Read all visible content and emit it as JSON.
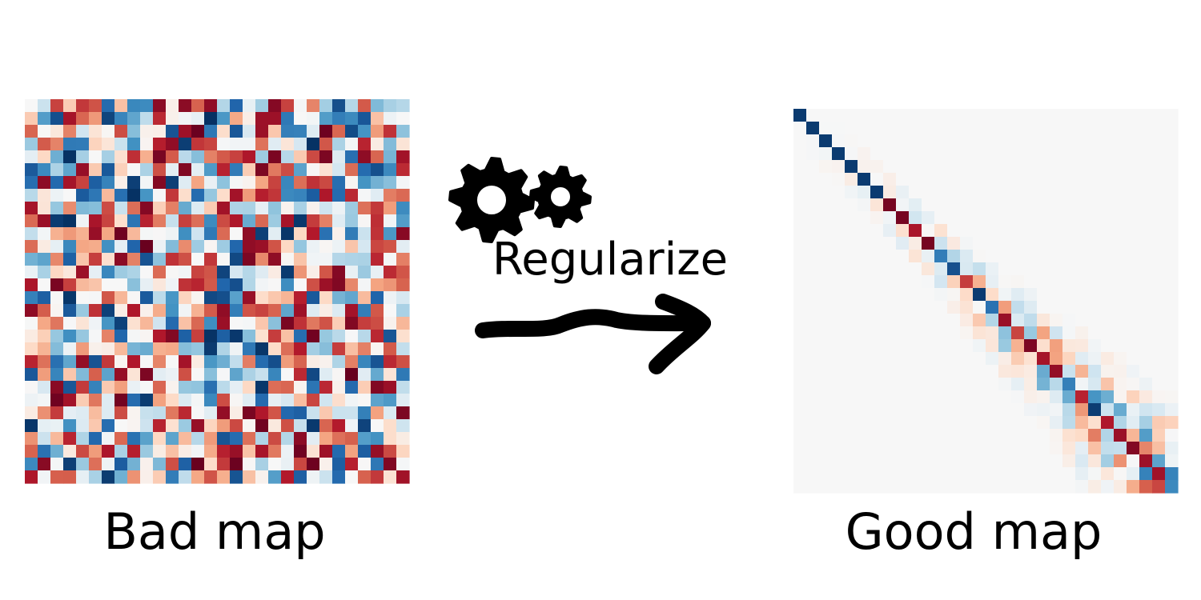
{
  "left_map": {
    "label": "Bad map",
    "kind": "random",
    "grid_size": 30
  },
  "right_map": {
    "label": "Good map",
    "kind": "banded-diagonal",
    "grid_size": 30
  },
  "transition": {
    "label": "Regularize",
    "icon": "gears-icon",
    "arrow": "hand-drawn-arrow"
  },
  "colors": {
    "colormap": "RdBu",
    "strong_red": "#67001f",
    "red": "#b2182b",
    "light_red": "#f4a582",
    "neutral": "#f7f7f7",
    "light_blue": "#92c5de",
    "blue": "#2166ac",
    "strong_blue": "#053061",
    "ink": "#000000"
  }
}
